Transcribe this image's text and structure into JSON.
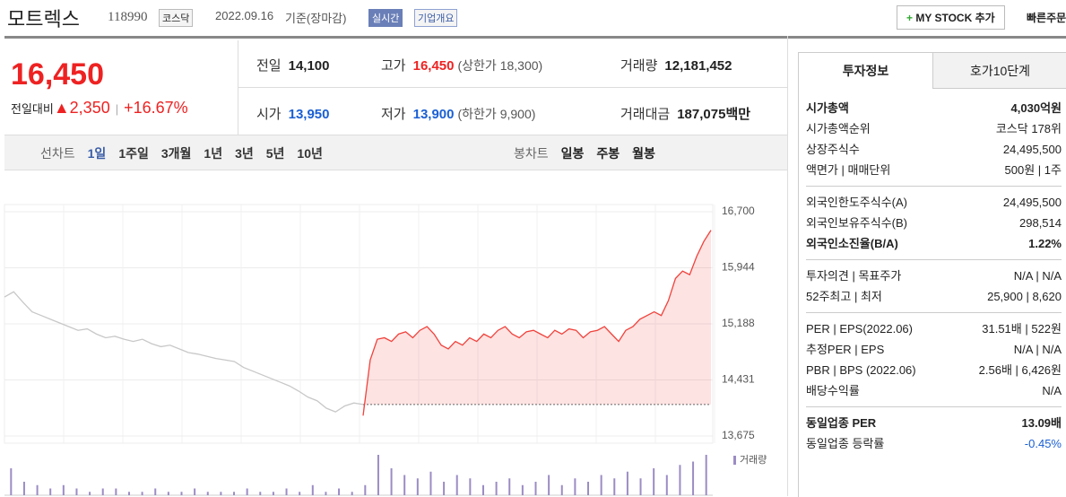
{
  "header": {
    "name": "모트렉스",
    "code": "118990",
    "market": "코스닥",
    "date": "2022.09.16",
    "basis": "기준(장마감)",
    "realtime": "실시간",
    "overview": "기업개요",
    "mystock": "MY STOCK 추가",
    "quick": "빠른주문"
  },
  "price": {
    "current": "16,450",
    "change_label": "전일대비",
    "change": "2,350",
    "rate": "+16.67%"
  },
  "quotes": [
    [
      {
        "label": "전일",
        "value": "14,100"
      },
      {
        "label": "고가",
        "value": "16,450",
        "note": "(상한가 18,300)"
      },
      {
        "label": "거래량",
        "value": "12,181,452"
      }
    ],
    [
      {
        "label": "시가",
        "value": "13,950"
      },
      {
        "label": "저가",
        "value": "13,900",
        "note": "(하한가 9,900)"
      },
      {
        "label": "거래대금",
        "value": "187,075",
        "unit": "백만"
      }
    ]
  ],
  "tabs": {
    "line_label": "선차트",
    "line": [
      "1일",
      "1주일",
      "3개월",
      "1년",
      "3년",
      "5년",
      "10년"
    ],
    "candle_label": "봉차트",
    "candle": [
      "일봉",
      "주봉",
      "월봉"
    ]
  },
  "info": {
    "tabs": [
      "투자정보",
      "호가10단계"
    ],
    "groups": [
      [
        {
          "label": "시가총액",
          "value": "4,030억원",
          "emphasis": true
        },
        {
          "label": "시가총액순위",
          "value": "코스닥 178위"
        },
        {
          "label": "상장주식수",
          "value": "24,495,500"
        },
        {
          "label": "액면가 | 매매단위",
          "value": "500원 | 1주"
        }
      ],
      [
        {
          "label": "외국인한도주식수(A)",
          "value": "24,495,500"
        },
        {
          "label": "외국인보유주식수(B)",
          "value": "298,514"
        },
        {
          "label": "외국인소진율(B/A)",
          "value": "1.22%",
          "emphasis": true
        }
      ],
      [
        {
          "label": "투자의견 | 목표주가",
          "value": "N/A | N/A"
        },
        {
          "label": "52주최고 | 최저",
          "value": "25,900 | 8,620"
        }
      ],
      [
        {
          "label": "PER | EPS(2022.06)",
          "value": "31.51배 | 522원"
        },
        {
          "label": "추정PER | EPS",
          "value": "N/A | N/A"
        },
        {
          "label": "PBR | BPS (2022.06)",
          "value": "2.56배 | 6,426원"
        },
        {
          "label": "배당수익률",
          "value": "N/A"
        }
      ],
      [
        {
          "label": "동일업종 PER",
          "value": "13.09배",
          "emphasis": true
        },
        {
          "label": "동일업종 등락률",
          "value": "-0.45%",
          "color": "#1a5fd4"
        }
      ]
    ]
  },
  "chart_data": {
    "type": "line",
    "ylim": [
      13675,
      16700
    ],
    "yticks": [
      {
        "value": 16700,
        "label": "16,700"
      },
      {
        "value": 15944,
        "label": "15,944"
      },
      {
        "value": 15188,
        "label": "15,188"
      },
      {
        "value": 14431,
        "label": "14,431"
      },
      {
        "value": 13675,
        "label": "13,675"
      }
    ],
    "baseline": 14100,
    "series": [
      {
        "color": "#c8c8c8",
        "values": [
          15550,
          15620,
          15480,
          15350,
          15300,
          15250,
          15200,
          15150,
          15100,
          15120,
          15050,
          15000,
          15020,
          14980,
          14950,
          14980,
          14920,
          14880,
          14900,
          14850,
          14800,
          14780,
          14750,
          14720,
          14700,
          14680,
          14600,
          14550,
          14500,
          14450,
          14400,
          14350,
          14280,
          14200,
          14150,
          14050,
          14000,
          14080,
          14120,
          14100
        ]
      },
      {
        "color": "#f0423c",
        "values": [
          13950,
          14700,
          14980,
          15000,
          14950,
          15050,
          15080,
          15000,
          15100,
          15150,
          15050,
          14900,
          14850,
          14950,
          14900,
          15000,
          14950,
          15050,
          15000,
          15100,
          15150,
          15050,
          15000,
          15080,
          15100,
          15050,
          15000,
          15100,
          15050,
          15120,
          15100,
          15000,
          15080,
          15100,
          15150,
          15050,
          14950,
          15100,
          15150,
          15250,
          15300,
          15350,
          15300,
          15500,
          15800,
          15900,
          15850,
          16100,
          16300,
          16450
        ]
      }
    ],
    "volume": {
      "label": "거래량",
      "color": "#9b8cc4",
      "values": [
        8,
        4,
        3,
        2,
        3,
        2,
        1,
        2,
        2,
        1,
        1,
        2,
        1,
        1,
        2,
        1,
        1,
        1,
        2,
        1,
        1,
        2,
        1,
        3,
        1,
        2,
        1,
        3,
        12,
        8,
        6,
        5,
        7,
        4,
        6,
        5,
        3,
        4,
        5,
        3,
        4,
        6,
        3,
        5,
        4,
        6,
        5,
        7,
        5,
        8,
        6,
        9,
        10,
        12
      ]
    }
  }
}
